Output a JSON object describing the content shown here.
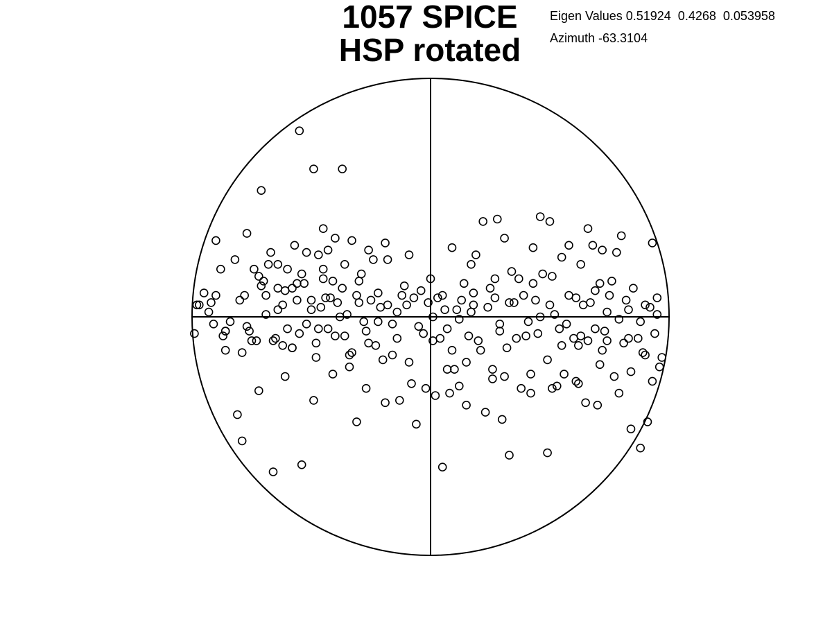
{
  "title_line1": "1057 SPICE",
  "title_line2": "HSP rotated",
  "eigen_label": "Eigen Values 0.51924  0.4268  0.053958",
  "azimuth_label": "Azimuth -63.3104",
  "chart_data": {
    "type": "scatter",
    "title": "1057 SPICE\nHSP rotated",
    "marker": "open-circle",
    "grid": false,
    "legend": "none",
    "xlim": [
      -1,
      1
    ],
    "ylim": [
      -1,
      1
    ],
    "series": [
      {
        "x": [
          -0.55,
          -0.49,
          -0.37,
          -0.71,
          -0.45,
          -0.67,
          -0.64,
          -0.74,
          -0.71,
          -0.52,
          -0.47,
          -0.4,
          -0.41,
          -0.33,
          -0.29,
          -0.24,
          -0.18,
          -0.09,
          -0.26,
          -0.36,
          -0.45,
          -0.6,
          -0.56,
          -0.42,
          -0.82,
          -0.88,
          -0.95,
          -0.9,
          -0.68,
          -0.72,
          -0.78,
          -0.64,
          -0.58,
          -0.53,
          -0.64,
          -0.56,
          -0.84,
          -0.98,
          -0.91,
          -0.86,
          -0.66,
          -0.58,
          -0.48,
          -0.41,
          -0.34,
          -0.26,
          -0.16,
          -0.09,
          0.01,
          0.07,
          0.12,
          0.02,
          0.1,
          0.15,
          0.21,
          0.26,
          0.31,
          0.38,
          0.42,
          0.49,
          0.56,
          0.62,
          0.66,
          0.71,
          0.77,
          0.84,
          0.89,
          0.93,
          0.96,
          0.72,
          0.5,
          0.46,
          0.28,
          0.22,
          0.19,
          0.43,
          0.8,
          0.66,
          0.55,
          0.63,
          0.68,
          0.71,
          0.51,
          0.43,
          0.34,
          0.27,
          0.17,
          -0.06,
          -0.19,
          -0.27,
          -0.31,
          -0.54,
          -0.66,
          -0.79,
          -0.81,
          0.05,
          0.33,
          0.49,
          0.84,
          0.88,
          0.91,
          0.97,
          0.87,
          0.74,
          0.7,
          0.62,
          0.53,
          0.3,
          0.23,
          0.15,
          0.08,
          -0.02,
          -0.13,
          -0.2,
          -0.12,
          -0.04,
          0.03,
          0.11,
          0.18,
          -0.14,
          -0.22,
          -0.3,
          -0.38,
          -0.46,
          -0.52,
          -0.6,
          -0.69,
          -0.77,
          -0.86,
          -0.93,
          -0.97,
          -0.75,
          -0.62,
          -0.5,
          -0.43,
          -0.35,
          -0.28,
          -0.21,
          -0.16,
          -0.1,
          -0.05,
          0.01,
          0.06,
          0.12,
          0.17,
          0.24,
          0.29,
          0.35,
          0.41,
          0.46,
          0.52,
          0.57,
          0.64,
          0.69,
          0.74,
          0.79,
          0.83,
          0.88,
          0.92,
          0.95,
          -0.7,
          -0.61,
          -0.54,
          -0.45,
          -0.37,
          -0.3,
          -0.22,
          -0.11,
          0.0,
          0.14,
          0.25,
          0.37,
          0.47,
          0.58,
          0.69,
          0.76,
          0.85,
          -0.86,
          -0.79,
          -0.73,
          -0.58,
          -0.48,
          -0.4,
          -0.33,
          -0.23,
          0.04,
          0.09,
          0.2,
          0.32,
          0.4,
          0.55,
          0.6,
          0.72,
          0.81,
          0.9,
          -0.92,
          -0.8,
          -0.69,
          -0.62,
          -0.5,
          -0.44,
          -0.39,
          -0.31,
          -0.25,
          -0.18,
          -0.07,
          -0.01,
          0.05,
          0.13,
          0.18,
          0.27,
          0.33,
          0.39,
          0.44,
          0.5,
          0.61,
          0.67,
          0.75,
          0.82,
          0.9,
          0.95,
          -0.99,
          -0.87,
          -0.76,
          -0.65,
          -0.55,
          -0.47,
          -0.36,
          -0.27,
          -0.14,
          -0.03,
          0.07,
          0.16,
          0.29,
          0.36,
          0.45,
          0.54,
          0.63,
          0.73,
          0.83,
          0.94,
          -0.9,
          -0.77,
          -0.57,
          -0.43,
          -0.19,
          0.09,
          0.31,
          0.58,
          0.78,
          0.93,
          -0.61,
          -0.34,
          0.42,
          0.61,
          -0.72,
          -0.08,
          0.26,
          0.51,
          0.79,
          -0.49,
          0.65
        ],
        "y": [
          0.78,
          0.62,
          0.62,
          0.53,
          0.37,
          0.27,
          0.22,
          0.2,
          0.13,
          0.27,
          0.26,
          0.33,
          0.15,
          0.32,
          0.18,
          0.24,
          0.24,
          0.26,
          0.28,
          0.22,
          0.16,
          0.2,
          0.14,
          0.08,
          0.24,
          0.2,
          0.1,
          0.09,
          0.22,
          0.17,
          0.09,
          0.12,
          0.12,
          0.14,
          0.03,
          0.07,
          -0.02,
          0.05,
          -0.03,
          -0.06,
          -0.1,
          -0.13,
          -0.17,
          -0.24,
          -0.16,
          -0.11,
          -0.16,
          -0.19,
          -0.1,
          -0.22,
          -0.29,
          -0.33,
          -0.22,
          -0.19,
          -0.14,
          -0.22,
          -0.25,
          -0.3,
          -0.32,
          -0.18,
          -0.24,
          -0.12,
          -0.1,
          -0.2,
          -0.25,
          -0.23,
          -0.15,
          -0.27,
          -0.21,
          0.28,
          0.4,
          0.42,
          0.41,
          0.4,
          0.26,
          0.29,
          0.34,
          0.37,
          0.25,
          0.22,
          0.3,
          0.14,
          0.17,
          0.14,
          0.19,
          0.16,
          0.22,
          -0.45,
          -0.36,
          -0.3,
          -0.44,
          -0.62,
          -0.65,
          -0.52,
          -0.41,
          -0.63,
          -0.58,
          -0.57,
          -0.47,
          -0.55,
          -0.44,
          -0.17,
          -0.09,
          -0.1,
          -0.37,
          -0.28,
          -0.29,
          -0.43,
          -0.4,
          -0.37,
          -0.32,
          -0.3,
          -0.35,
          -0.18,
          0.09,
          0.11,
          0.08,
          0.03,
          0.1,
          0.02,
          -0.02,
          0.06,
          0.0,
          0.04,
          -0.03,
          -0.05,
          0.01,
          -0.04,
          -0.06,
          0.02,
          0.05,
          -0.1,
          -0.12,
          0.03,
          -0.05,
          0.01,
          -0.02,
          0.04,
          -0.03,
          0.05,
          -0.04,
          0.0,
          0.03,
          -0.01,
          0.02,
          0.04,
          -0.03,
          0.06,
          -0.02,
          0.0,
          0.01,
          -0.03,
          0.05,
          -0.05,
          0.02,
          -0.01,
          0.03,
          -0.02,
          0.04,
          0.01,
          0.15,
          0.11,
          0.18,
          0.2,
          0.12,
          0.15,
          0.1,
          0.13,
          0.16,
          0.14,
          0.12,
          0.16,
          0.18,
          0.09,
          0.11,
          0.15,
          0.12,
          -0.14,
          -0.15,
          -0.1,
          -0.13,
          -0.11,
          -0.08,
          -0.15,
          -0.12,
          -0.09,
          -0.14,
          -0.1,
          -0.13,
          -0.08,
          -0.12,
          -0.09,
          -0.14,
          -0.11,
          -0.16,
          0.06,
          0.07,
          0.09,
          0.05,
          0.07,
          0.08,
          0.06,
          0.09,
          0.07,
          0.05,
          0.08,
          0.06,
          0.09,
          0.07,
          0.05,
          0.08,
          0.06,
          0.09,
          0.07,
          0.05,
          0.08,
          0.06,
          0.09,
          0.07,
          0.05,
          0.08,
          -0.07,
          -0.08,
          -0.06,
          -0.09,
          -0.07,
          -0.05,
          -0.08,
          -0.06,
          -0.09,
          -0.07,
          -0.05,
          -0.08,
          -0.06,
          -0.09,
          -0.07,
          -0.05,
          -0.08,
          -0.06,
          -0.09,
          -0.07,
          0.32,
          0.35,
          0.3,
          0.28,
          0.31,
          0.29,
          0.33,
          0.3,
          0.27,
          0.31,
          -0.25,
          -0.21,
          -0.24,
          -0.27,
          -0.31,
          -0.28,
          -0.26,
          -0.3,
          -0.32,
          -0.35,
          -0.36
        ]
      }
    ]
  }
}
